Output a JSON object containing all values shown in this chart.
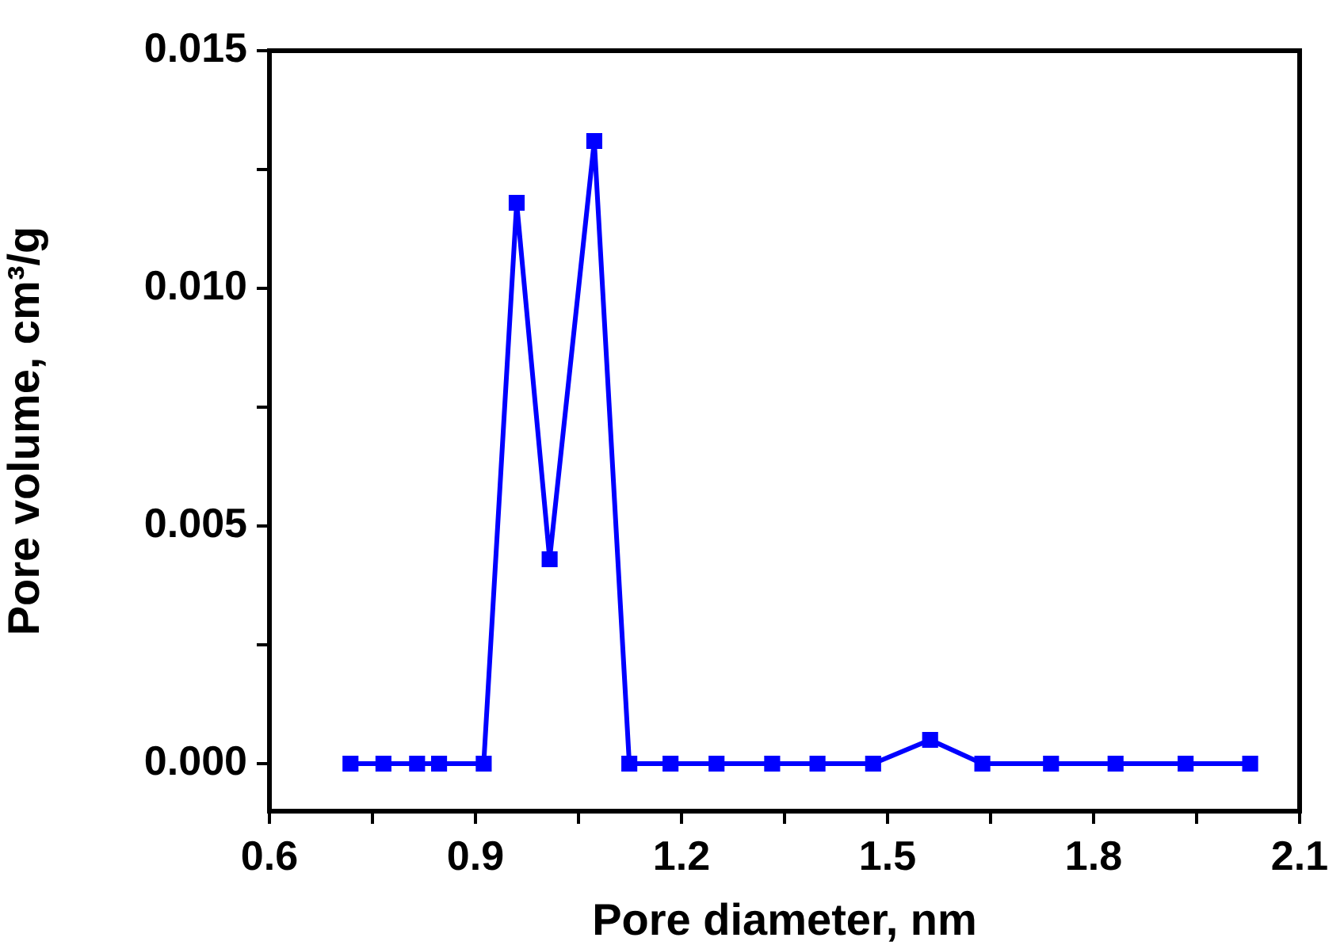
{
  "chart_data": {
    "type": "line",
    "xlabel": "Pore diameter, nm",
    "ylabel": "Pore volume, cm³/g",
    "x": [
      0.718,
      0.766,
      0.815,
      0.847,
      0.912,
      0.96,
      1.008,
      1.073,
      1.124,
      1.184,
      1.251,
      1.332,
      1.398,
      1.479,
      1.562,
      1.638,
      1.738,
      1.832,
      1.934,
      2.028
    ],
    "series": [
      {
        "color": "#0000ff",
        "values": [
          0,
          0,
          0,
          0,
          0,
          0.0118,
          0.0043,
          0.0131,
          0,
          0,
          0,
          0,
          0,
          0,
          0.0005,
          0,
          0,
          0,
          0,
          0
        ]
      }
    ],
    "xlim": [
      0.6,
      2.1
    ],
    "xticks": [
      0.6,
      {
        "value": 0.75,
        "label": null
      },
      0.9,
      {
        "value": 1.05,
        "label": null
      },
      1.2,
      {
        "value": 1.35,
        "label": null
      },
      1.5,
      {
        "value": 1.65,
        "label": null
      },
      1.8,
      {
        "value": 1.95,
        "label": null
      },
      2.1
    ],
    "ylim": [
      -0.001,
      0.015
    ],
    "yticks": [
      {
        "value": 0,
        "label": "0.000"
      },
      {
        "value": 0.0025,
        "label": null
      },
      {
        "value": 0.005,
        "label": "0.005"
      },
      {
        "value": 0.0075,
        "label": null
      },
      {
        "value": 0.01,
        "label": "0.010"
      },
      {
        "value": 0.0125,
        "label": null
      },
      {
        "value": 0.015,
        "label": "0.015"
      }
    ],
    "grid": false,
    "legend": false,
    "marker": "square",
    "line_style": "solid"
  }
}
